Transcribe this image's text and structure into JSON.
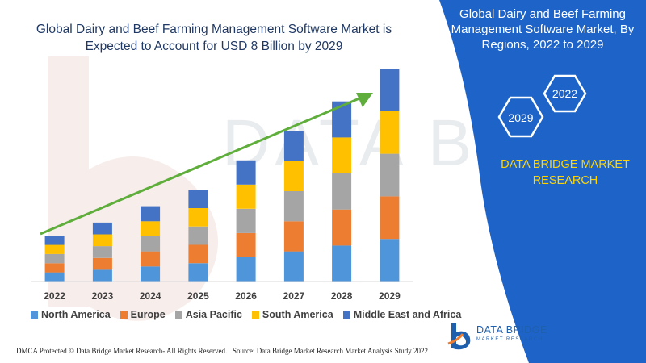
{
  "title": "Global Dairy and Beef Farming Management Software Market is Expected to Account for USD 8 Billion by 2029",
  "panel": {
    "title": "Global Dairy and Beef Farming Management Software Market, By Regions, 2022 to 2029",
    "hex_start": "2029",
    "hex_end": "2022",
    "brand": "DATA BRIDGE MARKET RESEARCH"
  },
  "logo": {
    "name": "DATA BRIDGE",
    "tagline": "MARKET RESEARCH"
  },
  "footer": {
    "left": "DMCA Protected © Data Bridge Market Research- All Rights Reserved.",
    "right": "Source: Data Bridge Market Research Market Analysis Study 2022"
  },
  "colors": {
    "north_america": "#4e95d9",
    "europe": "#ed7d31",
    "asia_pacific": "#a5a5a5",
    "south_america": "#ffc000",
    "middle_east_africa": "#4472c4",
    "arrow": "#5fae3c",
    "panel": "#1e64c8",
    "accent": "#ffd400"
  },
  "chart_data": {
    "type": "bar",
    "stacked": true,
    "categories": [
      "2022",
      "2023",
      "2024",
      "2025",
      "2026",
      "2027",
      "2028",
      "2029"
    ],
    "series": [
      {
        "name": "North America",
        "values": [
          1.4,
          1.8,
          2.3,
          2.8,
          3.7,
          4.6,
          5.5,
          6.5
        ]
      },
      {
        "name": "Europe",
        "values": [
          1.4,
          1.8,
          2.3,
          2.8,
          3.7,
          4.6,
          5.5,
          6.5
        ]
      },
      {
        "name": "Asia Pacific",
        "values": [
          1.4,
          1.8,
          2.3,
          2.8,
          3.7,
          4.6,
          5.5,
          6.5
        ]
      },
      {
        "name": "South America",
        "values": [
          1.4,
          1.8,
          2.3,
          2.8,
          3.7,
          4.6,
          5.5,
          6.5
        ]
      },
      {
        "name": "Middle East and Africa",
        "values": [
          1.4,
          1.8,
          2.3,
          2.8,
          3.7,
          4.6,
          5.5,
          6.5
        ]
      }
    ],
    "ylim": [
      0,
      33
    ],
    "grid": false,
    "legend": "bottom",
    "trend_arrow": true
  }
}
